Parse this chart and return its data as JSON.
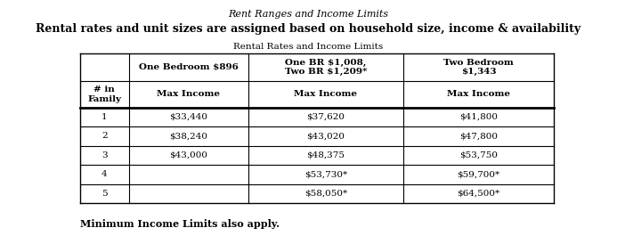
{
  "title_italic": "Rent Ranges and Income Limits",
  "title_bold": "Rental rates and unit sizes are assigned based on household size, income & availability",
  "subtitle": "Rental Rates and Income Limits",
  "footer": "Minimum Income Limits also apply.",
  "col_headers_row1": [
    "",
    "One Bedroom $896",
    "One BR $1,008,\nTwo BR $1,209*",
    "Two Bedroom\n$1,343"
  ],
  "col_headers_row2": [
    "# in\nFamily",
    "Max Income",
    "Max Income",
    "Max Income"
  ],
  "rows": [
    [
      "1",
      "$33,440",
      "$37,620",
      "$41,800"
    ],
    [
      "2",
      "$38,240",
      "$43,020",
      "$47,800"
    ],
    [
      "3",
      "$43,000",
      "$48,375",
      "$53,750"
    ],
    [
      "4",
      "",
      "$53,730*",
      "$59,700*"
    ],
    [
      "5",
      "",
      "$58,050*",
      "$64,500*"
    ]
  ],
  "background_color": "#ffffff",
  "fig_width": 6.93,
  "fig_height": 2.65,
  "dpi": 100
}
